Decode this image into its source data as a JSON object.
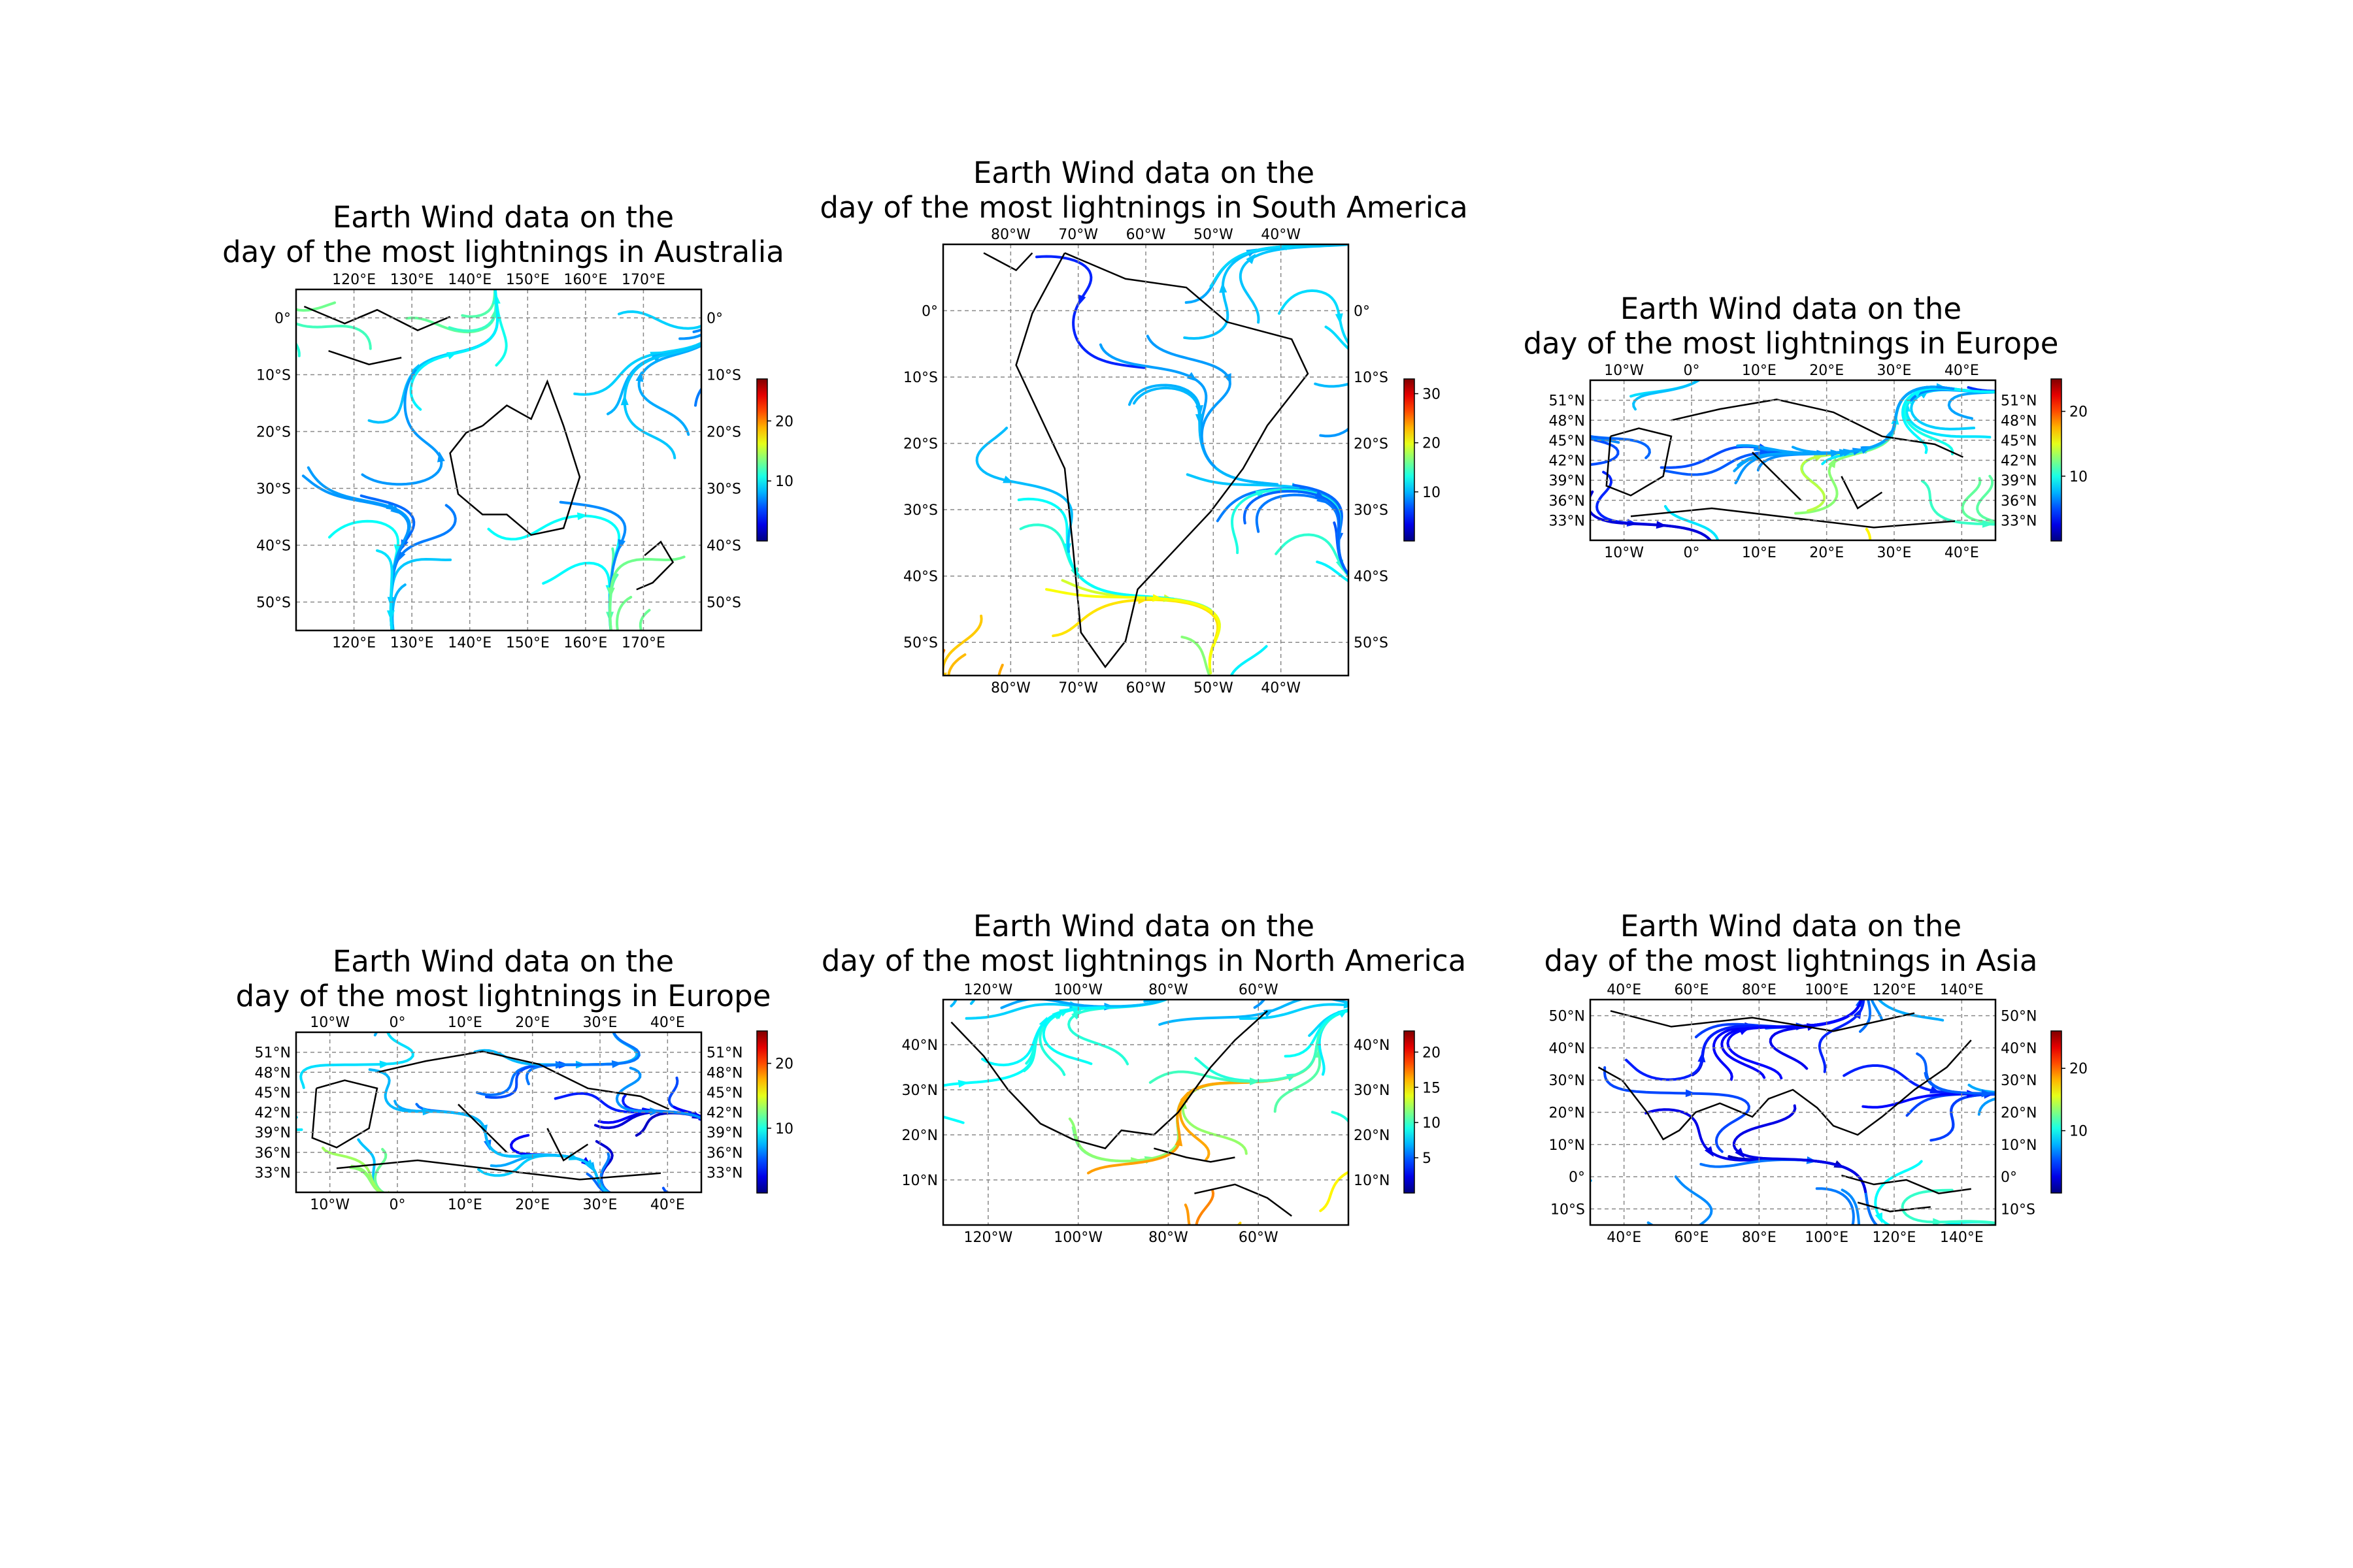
{
  "chart_data": [
    {
      "type": "streamplot",
      "title_line1": "Earth Wind data on the",
      "title_line2": "day of the most lightnings in Australia",
      "lon_range": [
        110,
        180
      ],
      "lat_range": [
        -55,
        5
      ],
      "xticks": [
        {
          "v": 120,
          "label": "120°E"
        },
        {
          "v": 130,
          "label": "130°E"
        },
        {
          "v": 140,
          "label": "140°E"
        },
        {
          "v": 150,
          "label": "150°E"
        },
        {
          "v": 160,
          "label": "160°E"
        },
        {
          "v": 170,
          "label": "170°E"
        }
      ],
      "yticks": [
        {
          "v": 0,
          "label": "0°"
        },
        {
          "v": -10,
          "label": "10°S"
        },
        {
          "v": -20,
          "label": "20°S"
        },
        {
          "v": -30,
          "label": "30°S"
        },
        {
          "v": -40,
          "label": "40°S"
        },
        {
          "v": -50,
          "label": "50°S"
        }
      ],
      "colorbar": {
        "range": [
          0,
          27
        ],
        "ticks": [
          {
            "v": 10,
            "label": "10"
          },
          {
            "v": 20,
            "label": "20"
          }
        ]
      },
      "grid": true
    },
    {
      "type": "streamplot",
      "title_line1": "Earth Wind data on the",
      "title_line2": "day of the most lightnings in South America",
      "lon_range": [
        -90,
        -30
      ],
      "lat_range": [
        -55,
        10
      ],
      "xticks": [
        {
          "v": -80,
          "label": "80°W"
        },
        {
          "v": -70,
          "label": "70°W"
        },
        {
          "v": -60,
          "label": "60°W"
        },
        {
          "v": -50,
          "label": "50°W"
        },
        {
          "v": -40,
          "label": "40°W"
        }
      ],
      "yticks": [
        {
          "v": 0,
          "label": "0°"
        },
        {
          "v": -10,
          "label": "10°S"
        },
        {
          "v": -20,
          "label": "20°S"
        },
        {
          "v": -30,
          "label": "30°S"
        },
        {
          "v": -40,
          "label": "40°S"
        },
        {
          "v": -50,
          "label": "50°S"
        }
      ],
      "colorbar": {
        "range": [
          0,
          33
        ],
        "ticks": [
          {
            "v": 10,
            "label": "10"
          },
          {
            "v": 20,
            "label": "20"
          },
          {
            "v": 30,
            "label": "30"
          }
        ]
      },
      "grid": true
    },
    {
      "type": "streamplot",
      "title_line1": "Earth Wind data on the",
      "title_line2": "day of the most lightnings in Europe",
      "lon_range": [
        -15,
        45
      ],
      "lat_range": [
        30,
        54
      ],
      "xticks": [
        {
          "v": -10,
          "label": "10°W"
        },
        {
          "v": 0,
          "label": "0°"
        },
        {
          "v": 10,
          "label": "10°E"
        },
        {
          "v": 20,
          "label": "20°E"
        },
        {
          "v": 30,
          "label": "30°E"
        },
        {
          "v": 40,
          "label": "40°E"
        }
      ],
      "yticks": [
        {
          "v": 33,
          "label": "33°N"
        },
        {
          "v": 36,
          "label": "36°N"
        },
        {
          "v": 39,
          "label": "39°N"
        },
        {
          "v": 42,
          "label": "42°N"
        },
        {
          "v": 45,
          "label": "45°N"
        },
        {
          "v": 48,
          "label": "48°N"
        },
        {
          "v": 51,
          "label": "51°N"
        }
      ],
      "colorbar": {
        "range": [
          0,
          25
        ],
        "ticks": [
          {
            "v": 10,
            "label": "10"
          },
          {
            "v": 20,
            "label": "20"
          }
        ]
      },
      "grid": true
    },
    {
      "type": "streamplot",
      "title_line1": "Earth Wind data on the",
      "title_line2": "day of the most lightnings in Europe",
      "lon_range": [
        -15,
        45
      ],
      "lat_range": [
        30,
        54
      ],
      "xticks": [
        {
          "v": -10,
          "label": "10°W"
        },
        {
          "v": 0,
          "label": "0°"
        },
        {
          "v": 10,
          "label": "10°E"
        },
        {
          "v": 20,
          "label": "20°E"
        },
        {
          "v": 30,
          "label": "30°E"
        },
        {
          "v": 40,
          "label": "40°E"
        }
      ],
      "yticks": [
        {
          "v": 33,
          "label": "33°N"
        },
        {
          "v": 36,
          "label": "36°N"
        },
        {
          "v": 39,
          "label": "39°N"
        },
        {
          "v": 42,
          "label": "42°N"
        },
        {
          "v": 45,
          "label": "45°N"
        },
        {
          "v": 48,
          "label": "48°N"
        },
        {
          "v": 51,
          "label": "51°N"
        }
      ],
      "colorbar": {
        "range": [
          0,
          25
        ],
        "ticks": [
          {
            "v": 10,
            "label": "10"
          },
          {
            "v": 20,
            "label": "20"
          }
        ]
      },
      "grid": true
    },
    {
      "type": "streamplot",
      "title_line1": "Earth Wind data on the",
      "title_line2": "day of the most lightnings in North America",
      "lon_range": [
        -130,
        -40
      ],
      "lat_range": [
        0,
        50
      ],
      "xticks": [
        {
          "v": -120,
          "label": "120°W"
        },
        {
          "v": -100,
          "label": "100°W"
        },
        {
          "v": -80,
          "label": "80°W"
        },
        {
          "v": -60,
          "label": "60°W"
        }
      ],
      "yticks": [
        {
          "v": 10,
          "label": "10°N"
        },
        {
          "v": 20,
          "label": "20°N"
        },
        {
          "v": 30,
          "label": "30°N"
        },
        {
          "v": 40,
          "label": "40°N"
        }
      ],
      "colorbar": {
        "range": [
          0,
          23
        ],
        "ticks": [
          {
            "v": 5,
            "label": "5"
          },
          {
            "v": 10,
            "label": "10"
          },
          {
            "v": 15,
            "label": "15"
          },
          {
            "v": 20,
            "label": "20"
          }
        ]
      },
      "grid": true
    },
    {
      "type": "streamplot",
      "title_line1": "Earth Wind data on the",
      "title_line2": "day of the most lightnings in Asia",
      "lon_range": [
        30,
        150
      ],
      "lat_range": [
        -15,
        55
      ],
      "xticks": [
        {
          "v": 40,
          "label": "40°E"
        },
        {
          "v": 60,
          "label": "60°E"
        },
        {
          "v": 80,
          "label": "80°E"
        },
        {
          "v": 100,
          "label": "100°E"
        },
        {
          "v": 120,
          "label": "120°E"
        },
        {
          "v": 140,
          "label": "140°E"
        }
      ],
      "yticks": [
        {
          "v": -10,
          "label": "10°S"
        },
        {
          "v": 0,
          "label": "0°"
        },
        {
          "v": 10,
          "label": "10°N"
        },
        {
          "v": 20,
          "label": "20°N"
        },
        {
          "v": 30,
          "label": "30°N"
        },
        {
          "v": 40,
          "label": "40°N"
        },
        {
          "v": 50,
          "label": "50°N"
        }
      ],
      "colorbar": {
        "range": [
          0,
          26
        ],
        "ticks": [
          {
            "v": 10,
            "label": "10"
          },
          {
            "v": 20,
            "label": "20"
          }
        ]
      },
      "grid": true
    }
  ]
}
